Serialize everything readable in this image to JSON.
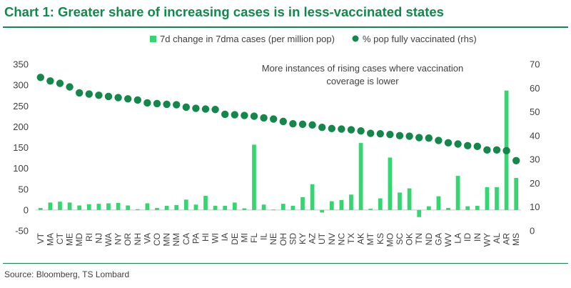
{
  "title": "Chart 1: Greater share of increasing cases is in less-vaccinated states",
  "source": "Source: Bloomberg, TS Lombard",
  "colors": {
    "bar": "#33d66f",
    "dot": "#13884a",
    "title": "#0f8a4a",
    "text": "#404040"
  },
  "chart_data": {
    "type": "bar",
    "annotation": "More instances of rising cases where vaccination coverage is lower",
    "categories": [
      "VT",
      "MA",
      "CT",
      "ME",
      "MD",
      "RI",
      "NJ",
      "WA",
      "NY",
      "OR",
      "NH",
      "VA",
      "CO",
      "MN",
      "NM",
      "CA",
      "PA",
      "HI",
      "WI",
      "IA",
      "DE",
      "MI",
      "FL",
      "IL",
      "NE",
      "OH",
      "SD",
      "KY",
      "AZ",
      "UT",
      "NV",
      "NC",
      "TX",
      "AK",
      "MT",
      "KS",
      "MO",
      "SC",
      "OK",
      "TN",
      "ND",
      "GA",
      "WV",
      "LA",
      "ID",
      "IN",
      "WY",
      "AL",
      "AR",
      "MS"
    ],
    "y_left": {
      "ylim": [
        -50,
        350
      ],
      "ticks": [
        -50,
        0,
        50,
        100,
        150,
        200,
        250,
        300,
        350
      ]
    },
    "y_right": {
      "ylim": [
        0,
        70
      ],
      "ticks": [
        0,
        10,
        20,
        30,
        40,
        50,
        60,
        70
      ]
    },
    "series": [
      {
        "name": "7d change in 7dma cases (per million pop)",
        "type": "bar",
        "axis": "left",
        "values": [
          5,
          18,
          20,
          18,
          11,
          14,
          15,
          16,
          17,
          11,
          2,
          16,
          5,
          10,
          12,
          25,
          13,
          34,
          10,
          10,
          18,
          4,
          157,
          13,
          1,
          15,
          10,
          31,
          62,
          -6,
          21,
          24,
          37,
          161,
          3,
          28,
          126,
          42,
          52,
          -17,
          9,
          33,
          5,
          82,
          9,
          10,
          55,
          55,
          287,
          77
        ]
      },
      {
        "name": "% pop fully vaccinated (rhs)",
        "type": "scatter",
        "axis": "right",
        "values": [
          64.5,
          63,
          62,
          60.5,
          58,
          57.5,
          57,
          56.5,
          56,
          55.5,
          55,
          53.8,
          53.5,
          53.2,
          53,
          52,
          51.5,
          51.2,
          51,
          49,
          48.8,
          48.5,
          48.2,
          47.5,
          47,
          46,
          45,
          44.8,
          44.5,
          43.5,
          43,
          42.8,
          42.5,
          42,
          41,
          40.8,
          40.5,
          40,
          39.8,
          39.2,
          39,
          38,
          37,
          36.5,
          35.8,
          35.5,
          34,
          34,
          33.7,
          29.5
        ]
      }
    ]
  }
}
